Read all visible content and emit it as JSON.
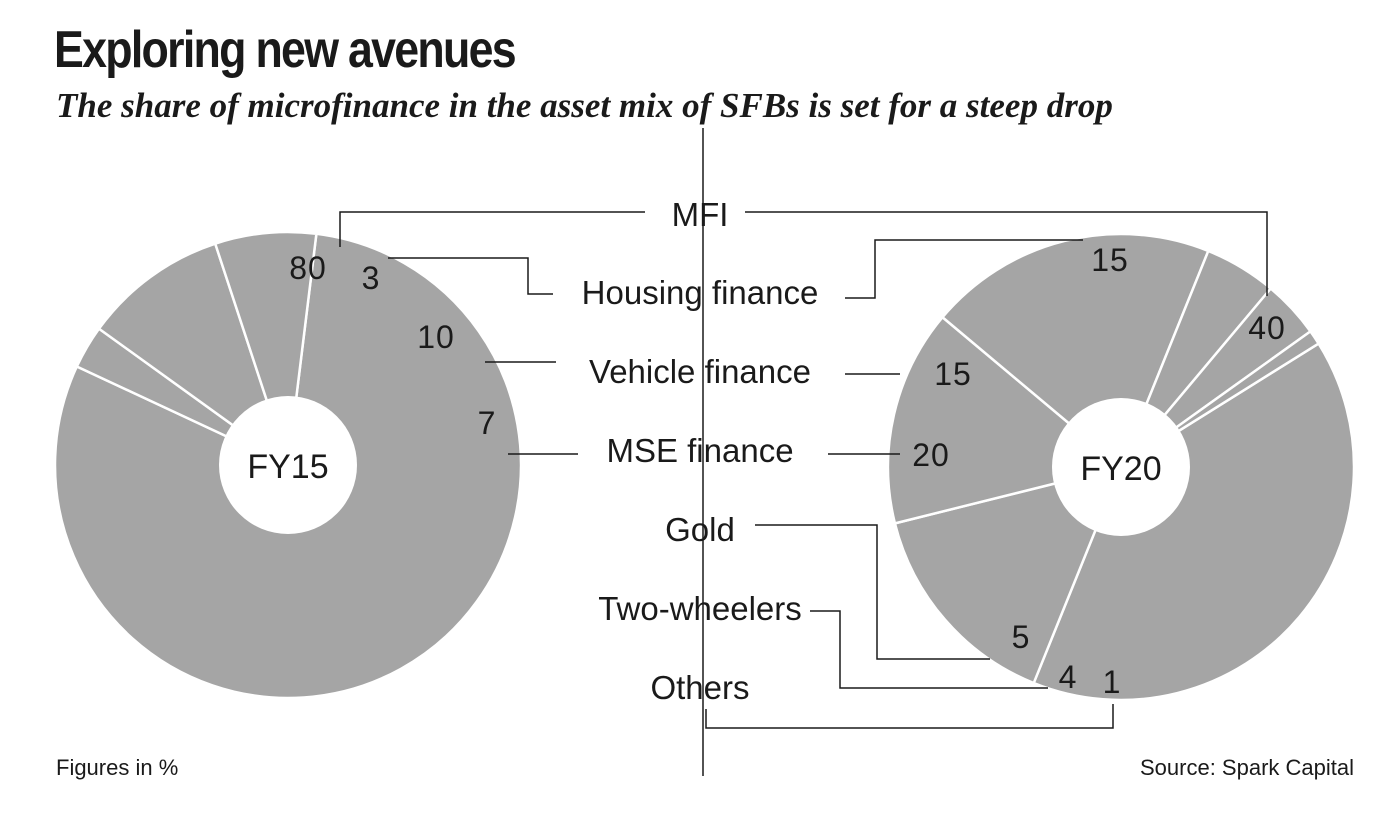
{
  "title": "Exploring new avenues",
  "subtitle": "The share of microfinance in the asset mix of SFBs is set for a steep drop",
  "note": "Figures in %",
  "source": "Source: Spark Capital",
  "colors": {
    "slice": "#a5a5a5",
    "line": "#1a1a1a",
    "text": "#1a1a1a"
  },
  "chart_data": [
    {
      "type": "pie",
      "label": "FY15",
      "categories": [
        "MFI",
        "Housing finance",
        "Vehicle finance",
        "MSE finance"
      ],
      "values": [
        80,
        3,
        10,
        7
      ],
      "value_labels": [
        "80",
        "3",
        "10",
        "7"
      ]
    },
    {
      "type": "pie",
      "label": "FY20",
      "categories": [
        "MFI",
        "Housing finance",
        "Vehicle finance",
        "MSE finance",
        "Gold",
        "Two-wheelers",
        "Others"
      ],
      "values": [
        40,
        15,
        15,
        20,
        5,
        4,
        1
      ],
      "value_labels": [
        "40",
        "15",
        "15",
        "20",
        "5",
        "4",
        "1"
      ]
    }
  ],
  "legend_labels": [
    "MFI",
    "Housing finance",
    "Vehicle finance",
    "MSE finance",
    "Gold",
    "Two-wheelers",
    "Others"
  ]
}
